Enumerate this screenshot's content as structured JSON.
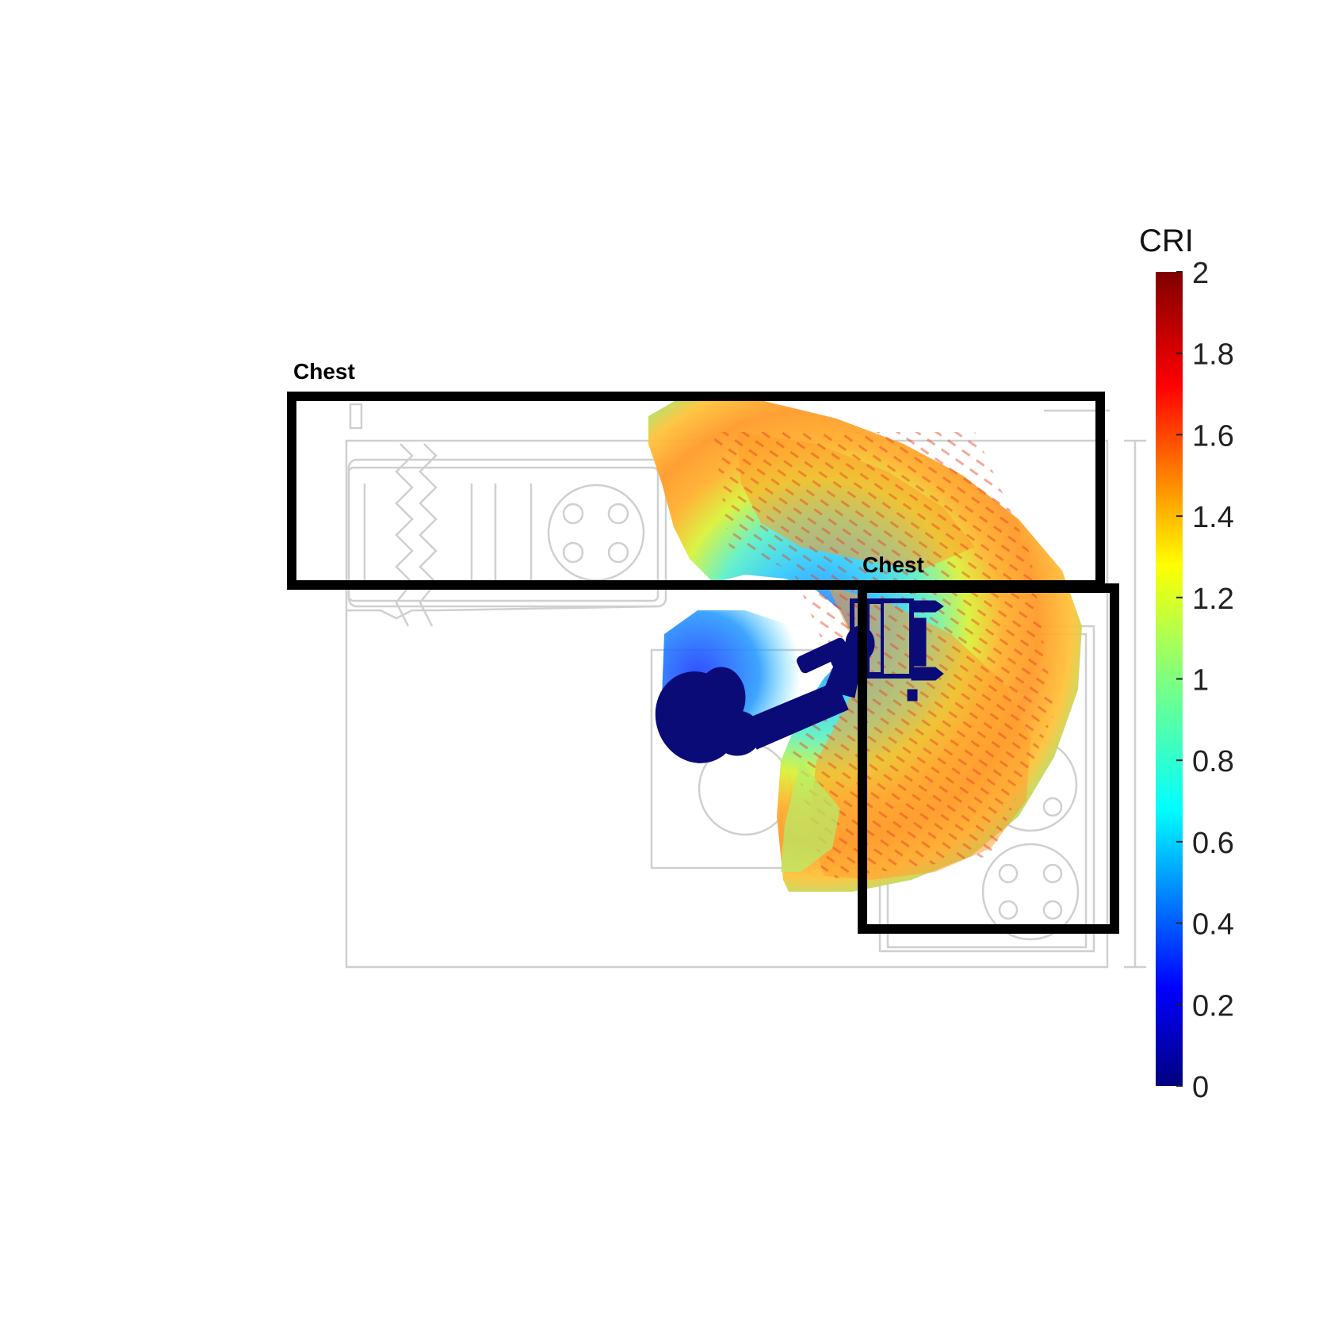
{
  "chart_data": {
    "type": "heatmap",
    "title": "",
    "xlabel": "",
    "ylabel": "",
    "colorbar": {
      "label": "CRI",
      "colormap": "jet",
      "range": [
        0,
        2
      ],
      "ticks": [
        0,
        0.2,
        0.4,
        0.6,
        0.8,
        1,
        1.2,
        1.4,
        1.6,
        1.8,
        2
      ],
      "tick_labels": [
        "0",
        "0.2",
        "0.4",
        "0.6",
        "0.8",
        "1",
        "1.2",
        "1.4",
        "1.6",
        "1.8",
        "2"
      ]
    },
    "zones": [
      {
        "label": "Chest"
      },
      {
        "label": "Chest"
      }
    ],
    "field": {
      "min_value": 0.4,
      "max_value": 1.7,
      "typical_core_value": 1.5
    },
    "robot_color": "#0b0b78",
    "floorplan_color": "#cfcfcf"
  }
}
